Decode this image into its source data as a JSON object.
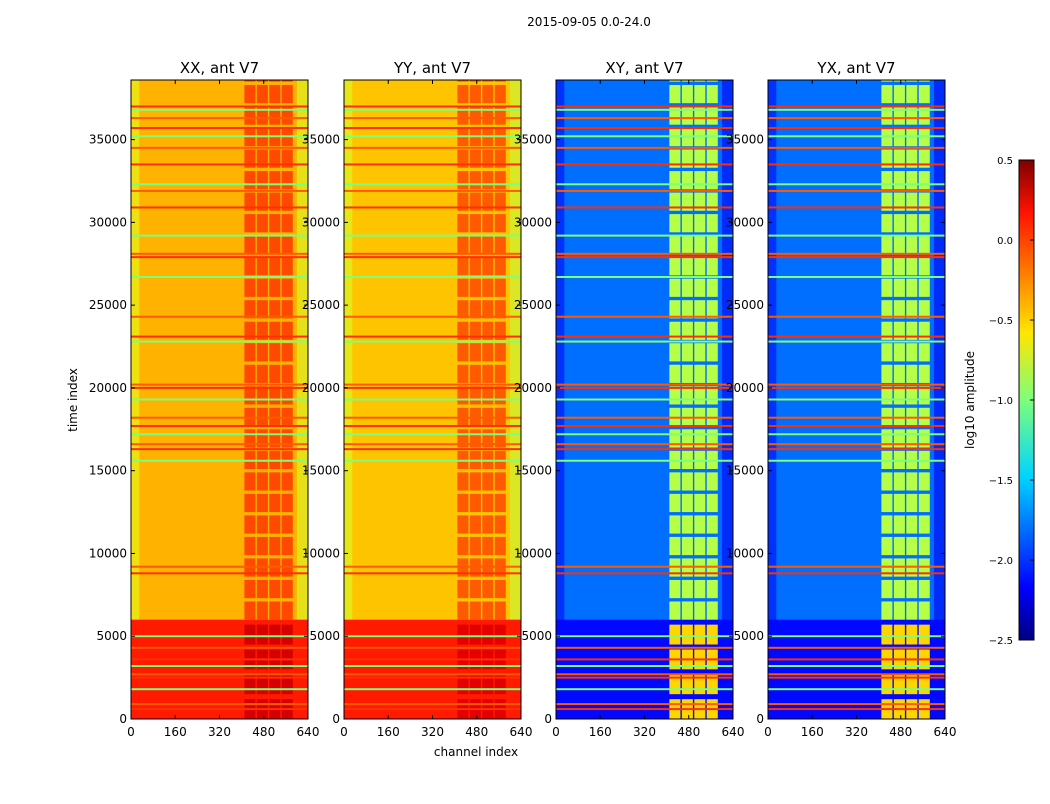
{
  "chart_data": {
    "type": "heatmap",
    "suptitle": "2015-09-05 0.0-24.0",
    "xlabel": "channel index",
    "ylabel": "time index",
    "xlim": [
      0,
      640
    ],
    "ylim": [
      0,
      38600
    ],
    "xticks": [
      "0",
      "160",
      "320",
      "480",
      "640"
    ],
    "xtick_values": [
      0,
      160,
      320,
      480,
      640
    ],
    "yticks": [
      "0",
      "5000",
      "10000",
      "15000",
      "20000",
      "25000",
      "30000",
      "35000"
    ],
    "ytick_values": [
      0,
      5000,
      10000,
      15000,
      20000,
      25000,
      30000,
      35000
    ],
    "panels": [
      {
        "title": "XX, ant V7",
        "base_log_amp": -0.4,
        "early_log_amp": 0.05,
        "band_log_amp": 0.15
      },
      {
        "title": "YY, ant V7",
        "base_log_amp": -0.45,
        "early_log_amp": 0.05,
        "band_log_amp": 0.1
      },
      {
        "title": "XY, ant V7",
        "base_log_amp": -1.8,
        "early_log_amp": -2.1,
        "band_log_amp": -0.6
      },
      {
        "title": "YX, ant V7",
        "base_log_amp": -1.8,
        "early_log_amp": -2.1,
        "band_log_amp": -0.6
      }
    ],
    "band_channels": [
      [
        410,
        450
      ],
      [
        455,
        495
      ],
      [
        500,
        540
      ],
      [
        545,
        585
      ]
    ],
    "rfi_rows_time_index": [
      600,
      900,
      1800,
      2500,
      2700,
      3200,
      3600,
      4300,
      5000,
      8800,
      9200,
      15600,
      16300,
      16600,
      17200,
      17700,
      18200,
      19300,
      20000,
      20200,
      22800,
      23100,
      24300,
      26700,
      27900,
      28100,
      29200,
      30900,
      31900,
      32300,
      33500,
      34500,
      35200,
      35700,
      36300,
      36800,
      37000
    ],
    "colorbar": {
      "label": "log10 amplitude",
      "range": [
        -2.5,
        0.5
      ],
      "ticks": [
        "0.5",
        "0.0",
        "−0.5",
        "−1.0",
        "−1.5",
        "−2.0",
        "−2.5"
      ],
      "tick_values": [
        0.5,
        0,
        -0.5,
        -1,
        -1.5,
        -2,
        -2.5
      ]
    }
  }
}
